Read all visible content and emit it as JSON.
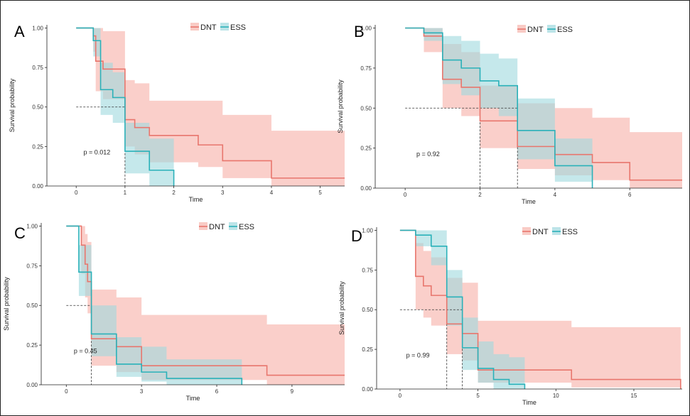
{
  "colors": {
    "DNT": "#e8766d",
    "DNT_band": "#f7b5ad",
    "ESS": "#2ab1b9",
    "ESS_band": "#9fd9de"
  },
  "chart_data": [
    {
      "type": "line",
      "panel_label": "A",
      "xlabel": "Time",
      "ylabel": "Survival probability",
      "xlim": [
        -0.6,
        5.5
      ],
      "ylim": [
        0,
        1.02
      ],
      "xticks": [
        0,
        1,
        2,
        3,
        4,
        5
      ],
      "xtick_labels": [
        "0",
        "1",
        "2",
        "3",
        "4",
        "5"
      ],
      "yticks": [
        0,
        0.25,
        0.5,
        0.75,
        1.0
      ],
      "ytick_labels": [
        "0.00",
        "0.25",
        "0.50",
        "0.75",
        "1.00"
      ],
      "legend": [
        "DNT",
        "ESS"
      ],
      "legend_placement": "top-center",
      "p_value": "p = 0.012",
      "p_value_at": [
        0.15,
        0.2
      ],
      "median_lines": [
        [
          0.5,
          "h",
          1.0
        ],
        [
          1.0,
          "v",
          0.5
        ]
      ],
      "series": [
        {
          "name": "DNT",
          "steps": [
            [
              0,
              1.0
            ],
            [
              0.35,
              0.95
            ],
            [
              0.4,
              0.79
            ],
            [
              0.55,
              0.74
            ],
            [
              1.0,
              0.42
            ],
            [
              1.2,
              0.37
            ],
            [
              1.5,
              0.32
            ],
            [
              2.0,
              0.32
            ],
            [
              2.5,
              0.26
            ],
            [
              3.0,
              0.16
            ],
            [
              4.0,
              0.05
            ],
            [
              5.5,
              0.05
            ]
          ],
          "lower": [
            [
              0,
              1.0
            ],
            [
              0.35,
              0.85
            ],
            [
              0.4,
              0.6
            ],
            [
              0.55,
              0.55
            ],
            [
              1.0,
              0.25
            ],
            [
              1.2,
              0.2
            ],
            [
              1.5,
              0.15
            ],
            [
              2.0,
              0.15
            ],
            [
              2.5,
              0.12
            ],
            [
              3.0,
              0.05
            ],
            [
              4.0,
              0.0
            ],
            [
              5.5,
              0.0
            ]
          ],
          "upper": [
            [
              0,
              1.0
            ],
            [
              0.35,
              1.0
            ],
            [
              0.55,
              0.98
            ],
            [
              1.0,
              0.67
            ],
            [
              1.2,
              0.65
            ],
            [
              1.5,
              0.54
            ],
            [
              2.0,
              0.54
            ],
            [
              2.5,
              0.54
            ],
            [
              3.0,
              0.45
            ],
            [
              4.0,
              0.35
            ],
            [
              5.5,
              0.35
            ]
          ]
        },
        {
          "name": "ESS",
          "steps": [
            [
              0,
              1.0
            ],
            [
              0.35,
              0.92
            ],
            [
              0.5,
              0.61
            ],
            [
              0.75,
              0.56
            ],
            [
              1.0,
              0.22
            ],
            [
              1.5,
              0.1
            ],
            [
              2.0,
              0.0
            ]
          ],
          "lower": [
            [
              0,
              1.0
            ],
            [
              0.35,
              0.82
            ],
            [
              0.5,
              0.45
            ],
            [
              0.75,
              0.4
            ],
            [
              1.0,
              0.08
            ],
            [
              1.5,
              0.0
            ],
            [
              2.0,
              0.0
            ]
          ],
          "upper": [
            [
              0,
              1.0
            ],
            [
              0.35,
              1.0
            ],
            [
              0.5,
              0.78
            ],
            [
              0.75,
              0.72
            ],
            [
              1.0,
              0.4
            ],
            [
              1.5,
              0.3
            ],
            [
              2.0,
              0.3
            ]
          ]
        }
      ]
    },
    {
      "type": "line",
      "panel_label": "B",
      "xlabel": "Time",
      "ylabel": "Survival probability",
      "xlim": [
        -0.8,
        7.4
      ],
      "ylim": [
        0,
        1.02
      ],
      "xticks": [
        0,
        2,
        4,
        6
      ],
      "xtick_labels": [
        "0",
        "2",
        "4",
        "6"
      ],
      "yticks": [
        0,
        0.25,
        0.5,
        0.75,
        1.0
      ],
      "ytick_labels": [
        "0.00",
        "0.25",
        "0.50",
        "0.75",
        "1.00"
      ],
      "legend": [
        "DNT",
        "ESS"
      ],
      "legend_placement": "top-center",
      "p_value": "p = 0.92",
      "p_value_at": [
        0.3,
        0.2
      ],
      "median_lines": [
        [
          0.5,
          "h",
          3.0
        ],
        [
          2.0,
          "v",
          0.5
        ],
        [
          3.0,
          "v",
          0.5
        ]
      ],
      "series": [
        {
          "name": "DNT",
          "steps": [
            [
              0,
              1.0
            ],
            [
              0.5,
              0.95
            ],
            [
              1.0,
              0.68
            ],
            [
              1.5,
              0.63
            ],
            [
              2.0,
              0.42
            ],
            [
              3.0,
              0.26
            ],
            [
              4.0,
              0.21
            ],
            [
              5.0,
              0.16
            ],
            [
              6.0,
              0.05
            ],
            [
              7.4,
              0.05
            ]
          ],
          "lower": [
            [
              0,
              1.0
            ],
            [
              0.5,
              0.85
            ],
            [
              1.0,
              0.5
            ],
            [
              1.5,
              0.45
            ],
            [
              2.0,
              0.25
            ],
            [
              3.0,
              0.12
            ],
            [
              4.0,
              0.08
            ],
            [
              5.0,
              0.05
            ],
            [
              6.0,
              0.0
            ],
            [
              7.4,
              0.0
            ]
          ],
          "upper": [
            [
              0,
              1.0
            ],
            [
              0.5,
              1.0
            ],
            [
              1.0,
              0.9
            ],
            [
              1.5,
              0.85
            ],
            [
              2.0,
              0.64
            ],
            [
              3.0,
              0.53
            ],
            [
              4.0,
              0.5
            ],
            [
              5.0,
              0.44
            ],
            [
              6.0,
              0.35
            ],
            [
              7.4,
              0.35
            ]
          ]
        },
        {
          "name": "ESS",
          "steps": [
            [
              0,
              1.0
            ],
            [
              0.5,
              0.97
            ],
            [
              1.0,
              0.8
            ],
            [
              1.5,
              0.75
            ],
            [
              2.0,
              0.67
            ],
            [
              2.5,
              0.64
            ],
            [
              3.0,
              0.36
            ],
            [
              4.0,
              0.14
            ],
            [
              5.0,
              0.0
            ]
          ],
          "lower": [
            [
              0,
              1.0
            ],
            [
              0.5,
              0.92
            ],
            [
              1.0,
              0.65
            ],
            [
              1.5,
              0.58
            ],
            [
              2.0,
              0.5
            ],
            [
              2.5,
              0.45
            ],
            [
              3.0,
              0.18
            ],
            [
              4.0,
              0.04
            ],
            [
              5.0,
              0.0
            ]
          ],
          "upper": [
            [
              0,
              1.0
            ],
            [
              0.5,
              1.0
            ],
            [
              1.0,
              0.95
            ],
            [
              1.5,
              0.92
            ],
            [
              2.0,
              0.84
            ],
            [
              2.5,
              0.81
            ],
            [
              3.0,
              0.56
            ],
            [
              4.0,
              0.31
            ],
            [
              5.0,
              0.31
            ]
          ]
        }
      ]
    },
    {
      "type": "line",
      "panel_label": "C",
      "xlabel": "Time",
      "ylabel": "Survival probability",
      "xlim": [
        -1.0,
        11.1
      ],
      "ylim": [
        0,
        1.02
      ],
      "xticks": [
        0,
        3,
        6,
        9
      ],
      "xtick_labels": [
        "0",
        "3",
        "6",
        "9"
      ],
      "yticks": [
        0,
        0.25,
        0.5,
        0.75,
        1.0
      ],
      "ytick_labels": [
        "0.00",
        "0.25",
        "0.50",
        "0.75",
        "1.00"
      ],
      "legend": [
        "DNT",
        "ESS"
      ],
      "legend_placement": "top-center",
      "p_value": "p = 0.45",
      "p_value_at": [
        0.3,
        0.2
      ],
      "median_lines": [
        [
          0.5,
          "h",
          1.0
        ],
        [
          1.0,
          "v",
          0.5
        ]
      ],
      "series": [
        {
          "name": "DNT",
          "steps": [
            [
              0,
              1.0
            ],
            [
              0.6,
              0.88
            ],
            [
              0.75,
              0.76
            ],
            [
              0.85,
              0.65
            ],
            [
              1.0,
              0.29
            ],
            [
              2.0,
              0.24
            ],
            [
              3.0,
              0.12
            ],
            [
              8.0,
              0.06
            ],
            [
              11.1,
              0.06
            ]
          ],
          "lower": [
            [
              0,
              1.0
            ],
            [
              0.6,
              0.7
            ],
            [
              0.75,
              0.55
            ],
            [
              0.85,
              0.45
            ],
            [
              1.0,
              0.12
            ],
            [
              2.0,
              0.08
            ],
            [
              3.0,
              0.03
            ],
            [
              8.0,
              0.0
            ],
            [
              11.1,
              0.0
            ]
          ],
          "upper": [
            [
              0,
              1.0
            ],
            [
              0.6,
              1.0
            ],
            [
              0.75,
              0.95
            ],
            [
              0.85,
              0.9
            ],
            [
              1.0,
              0.6
            ],
            [
              2.0,
              0.55
            ],
            [
              3.0,
              0.44
            ],
            [
              8.0,
              0.38
            ],
            [
              11.1,
              0.38
            ]
          ]
        },
        {
          "name": "ESS",
          "steps": [
            [
              0,
              1.0
            ],
            [
              0.5,
              0.71
            ],
            [
              0.75,
              0.71
            ],
            [
              1.0,
              0.32
            ],
            [
              2.0,
              0.13
            ],
            [
              3.0,
              0.08
            ],
            [
              4.0,
              0.04
            ],
            [
              7.0,
              0.0
            ]
          ],
          "lower": [
            [
              0,
              1.0
            ],
            [
              0.5,
              0.56
            ],
            [
              1.0,
              0.18
            ],
            [
              2.0,
              0.05
            ],
            [
              3.0,
              0.02
            ],
            [
              4.0,
              0.0
            ],
            [
              7.0,
              0.0
            ]
          ],
          "upper": [
            [
              0,
              1.0
            ],
            [
              0.5,
              0.88
            ],
            [
              1.0,
              0.5
            ],
            [
              2.0,
              0.3
            ],
            [
              3.0,
              0.24
            ],
            [
              4.0,
              0.16
            ],
            [
              7.0,
              0.16
            ]
          ]
        }
      ]
    },
    {
      "type": "line",
      "panel_label": "D",
      "xlabel": "Time",
      "ylabel": "Survival probability",
      "xlim": [
        -1.5,
        18.1
      ],
      "ylim": [
        0,
        1.02
      ],
      "xticks": [
        0,
        5,
        10,
        15
      ],
      "xtick_labels": [
        "0",
        "5",
        "10",
        "15"
      ],
      "yticks": [
        0,
        0.25,
        0.5,
        0.75,
        1.0
      ],
      "ytick_labels": [
        "0.00",
        "0.25",
        "0.50",
        "0.75",
        "1.00"
      ],
      "legend": [
        "DNT",
        "ESS"
      ],
      "legend_placement": "top-center",
      "p_value": "p = 0.99",
      "p_value_at": [
        0.4,
        0.2
      ],
      "median_lines": [
        [
          0.5,
          "h",
          4.0
        ],
        [
          3.0,
          "v",
          0.5
        ],
        [
          4.0,
          "v",
          0.5
        ]
      ],
      "series": [
        {
          "name": "DNT",
          "steps": [
            [
              0,
              1.0
            ],
            [
              1.0,
              0.71
            ],
            [
              1.5,
              0.65
            ],
            [
              2.0,
              0.59
            ],
            [
              3.0,
              0.41
            ],
            [
              4.0,
              0.35
            ],
            [
              5.0,
              0.12
            ],
            [
              11.0,
              0.06
            ],
            [
              18.0,
              0.0
            ]
          ],
          "lower": [
            [
              0,
              1.0
            ],
            [
              1.0,
              0.5
            ],
            [
              1.5,
              0.45
            ],
            [
              2.0,
              0.4
            ],
            [
              3.0,
              0.22
            ],
            [
              4.0,
              0.18
            ],
            [
              5.0,
              0.04
            ],
            [
              11.0,
              0.01
            ],
            [
              18.0,
              0.0
            ]
          ],
          "upper": [
            [
              0,
              1.0
            ],
            [
              1.0,
              0.92
            ],
            [
              1.5,
              0.87
            ],
            [
              2.0,
              0.83
            ],
            [
              3.0,
              0.7
            ],
            [
              4.0,
              0.67
            ],
            [
              5.0,
              0.43
            ],
            [
              11.0,
              0.39
            ],
            [
              18.0,
              0.39
            ]
          ]
        },
        {
          "name": "ESS",
          "steps": [
            [
              0,
              1.0
            ],
            [
              1.0,
              0.97
            ],
            [
              2.0,
              0.9
            ],
            [
              3.0,
              0.58
            ],
            [
              4.0,
              0.26
            ],
            [
              5.0,
              0.13
            ],
            [
              6.0,
              0.06
            ],
            [
              7.0,
              0.03
            ],
            [
              8.0,
              0.0
            ]
          ],
          "lower": [
            [
              0,
              1.0
            ],
            [
              1.0,
              0.9
            ],
            [
              2.0,
              0.78
            ],
            [
              3.0,
              0.4
            ],
            [
              4.0,
              0.12
            ],
            [
              5.0,
              0.04
            ],
            [
              6.0,
              0.0
            ],
            [
              8.0,
              0.0
            ]
          ],
          "upper": [
            [
              0,
              1.0
            ],
            [
              1.0,
              1.0
            ],
            [
              2.0,
              1.0
            ],
            [
              3.0,
              0.75
            ],
            [
              4.0,
              0.45
            ],
            [
              5.0,
              0.3
            ],
            [
              6.0,
              0.22
            ],
            [
              7.0,
              0.2
            ],
            [
              8.0,
              0.2
            ]
          ]
        }
      ]
    }
  ]
}
